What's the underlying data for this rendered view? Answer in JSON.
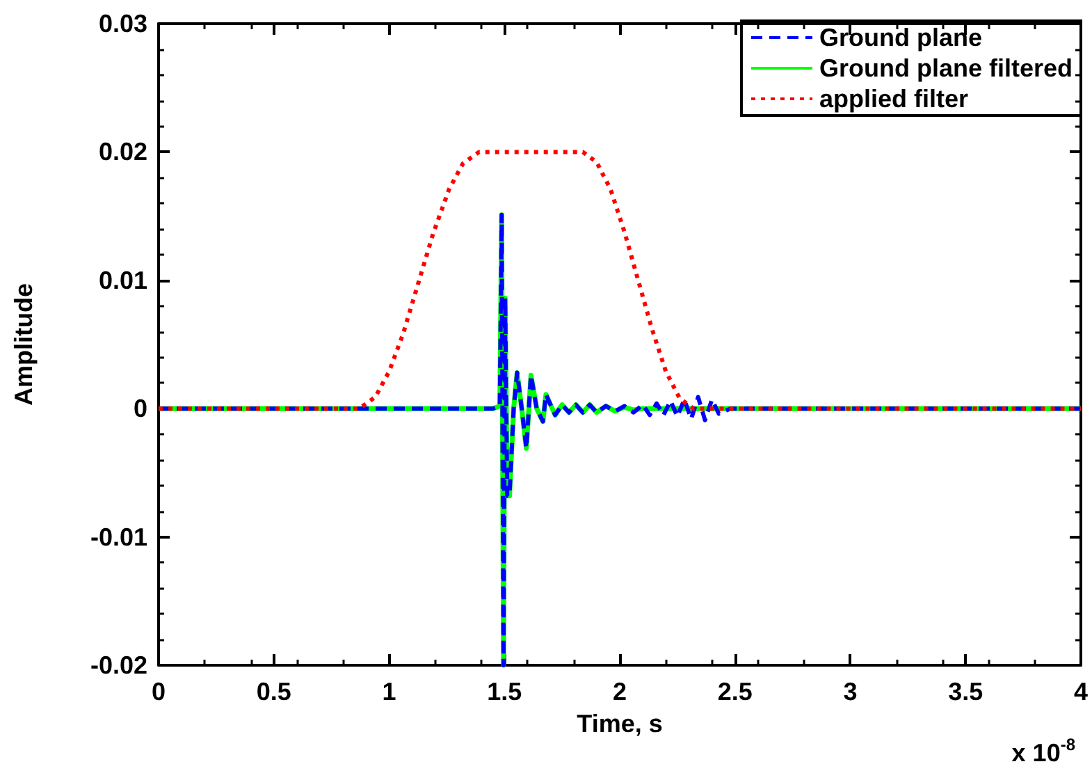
{
  "chart_data": {
    "type": "line",
    "xlabel": "Time, s",
    "ylabel": "Amplitude",
    "xlim": [
      0,
      4
    ],
    "xticks": [
      0,
      0.5,
      1,
      1.5,
      2,
      2.5,
      3,
      3.5,
      4
    ],
    "ylim": [
      -0.02,
      0.03
    ],
    "yticks": [
      -0.02,
      -0.01,
      0,
      0.01,
      0.02,
      0.03
    ],
    "grid": false,
    "legend": "top right",
    "marker": "none",
    "annotations": [
      "x 10$^{-8}$"
    ],
    "series": [
      {
        "name": "Ground plane",
        "color": "#0000ff",
        "line_style": "dashed",
        "x": [
          0,
          1.45,
          1.48,
          1.488,
          1.496,
          1.503,
          1.512,
          1.522,
          1.54,
          1.555,
          1.575,
          1.595,
          1.615,
          1.64,
          1.667,
          1.68,
          1.72,
          1.75,
          1.78,
          1.81,
          1.84,
          1.87,
          1.9,
          1.94,
          1.98,
          2.02,
          2.06,
          2.1,
          2.13,
          2.16,
          2.19,
          2.22,
          2.25,
          2.28,
          2.31,
          2.34,
          2.37,
          2.4,
          2.43,
          2.48,
          4
        ],
        "values": [
          0,
          0,
          0.0002,
          0.0151,
          -0.02,
          0.0086,
          -0.0068,
          -0.0068,
          0.0,
          0.0028,
          0.0,
          -0.0031,
          0.0026,
          0.0,
          -0.001,
          0.0011,
          -0.0005,
          0.0003,
          -0.0003,
          0.0003,
          -0.0003,
          0.0003,
          -0.0003,
          0.0002,
          -0.0002,
          0.0002,
          -0.0003,
          0.0003,
          -0.0005,
          0.0004,
          -0.0005,
          0.0006,
          -0.0006,
          0.0007,
          -0.0008,
          0.0009,
          -0.0009,
          0.0007,
          -0.0004,
          0,
          0
        ]
      },
      {
        "name": "Ground plane filtered",
        "color": "#00ff00",
        "line_style": "solid",
        "x": [
          0,
          1.45,
          1.48,
          1.488,
          1.496,
          1.503,
          1.512,
          1.522,
          1.54,
          1.555,
          1.575,
          1.595,
          1.615,
          1.64,
          1.667,
          1.68,
          1.72,
          1.75,
          1.78,
          1.81,
          1.84,
          1.87,
          1.9,
          1.94,
          1.98,
          2.02,
          2.06,
          2.1,
          4
        ],
        "values": [
          0,
          0,
          0.0002,
          0.0151,
          -0.02,
          0.0086,
          -0.0068,
          -0.0068,
          0.0,
          0.0028,
          0.0,
          -0.0031,
          0.0026,
          0.0,
          -0.001,
          0.0011,
          -0.0005,
          0.0003,
          -0.0003,
          0.0003,
          -0.0003,
          0.0003,
          -0.0003,
          0.0002,
          -0.0002,
          0.0001,
          -0.0001,
          0,
          0
        ]
      },
      {
        "name": "applied filter",
        "color": "#ff0000",
        "line_style": "dotted",
        "x": [
          0,
          0.87,
          0.94,
          1.0,
          1.06,
          1.13,
          1.19,
          1.26,
          1.32,
          1.39,
          1.84,
          1.9,
          1.96,
          2.02,
          2.08,
          2.14,
          2.2,
          2.26,
          2.32,
          4
        ],
        "values": [
          0,
          0,
          0.0009,
          0.0029,
          0.0058,
          0.01,
          0.0136,
          0.0171,
          0.0191,
          0.02,
          0.02,
          0.0192,
          0.0171,
          0.0138,
          0.01,
          0.0062,
          0.0029,
          0.0008,
          0,
          0
        ]
      }
    ]
  }
}
